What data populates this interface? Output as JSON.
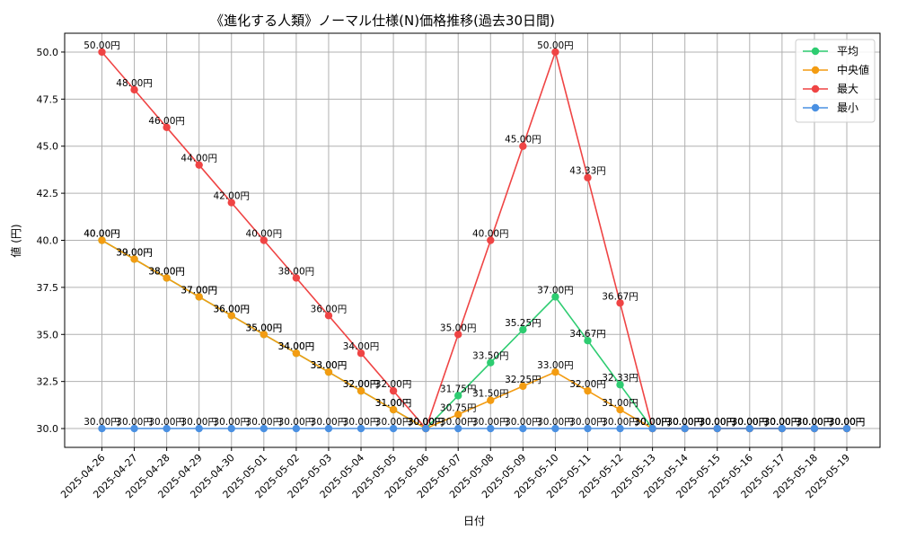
{
  "chart_data": {
    "type": "line",
    "title": "《進化する人類》ノーマル仕様(N)価格推移(過去30日間)",
    "xlabel": "日付",
    "ylabel": "値 (円)",
    "ylim": [
      29.0,
      51.0
    ],
    "yticks": [
      "30.0",
      "32.5",
      "35.0",
      "37.5",
      "40.0",
      "42.5",
      "45.0",
      "47.5",
      "50.0"
    ],
    "ytick_values": [
      30.0,
      32.5,
      35.0,
      37.5,
      40.0,
      42.5,
      45.0,
      47.5,
      50.0
    ],
    "grid": true,
    "legend_position": "top-right",
    "value_suffix": "円",
    "categories": [
      "2025-04-26",
      "2025-04-27",
      "2025-04-28",
      "2025-04-29",
      "2025-04-30",
      "2025-05-01",
      "2025-05-02",
      "2025-05-03",
      "2025-05-04",
      "2025-05-05",
      "2025-05-06",
      "2025-05-07",
      "2025-05-08",
      "2025-05-09",
      "2025-05-10",
      "2025-05-11",
      "2025-05-12",
      "2025-05-13",
      "2025-05-14",
      "2025-05-15",
      "2025-05-16",
      "2025-05-17",
      "2025-05-18",
      "2025-05-19"
    ],
    "series": [
      {
        "name": "平均",
        "color": "#2ecc71",
        "values": [
          40.0,
          39.0,
          38.0,
          37.0,
          36.0,
          35.0,
          34.0,
          33.0,
          32.0,
          31.0,
          30.0,
          31.75,
          33.5,
          35.25,
          37.0,
          34.67,
          32.33,
          30.0,
          30.0,
          30.0,
          30.0,
          30.0,
          30.0,
          30.0
        ]
      },
      {
        "name": "中央値",
        "color": "#f39c12",
        "values": [
          40.0,
          39.0,
          38.0,
          37.0,
          36.0,
          35.0,
          34.0,
          33.0,
          32.0,
          31.0,
          30.0,
          30.75,
          31.5,
          32.25,
          33.0,
          32.0,
          31.0,
          30.0,
          30.0,
          30.0,
          30.0,
          30.0,
          30.0,
          30.0
        ]
      },
      {
        "name": "最大",
        "color": "#ef4444",
        "values": [
          50.0,
          48.0,
          46.0,
          44.0,
          42.0,
          40.0,
          38.0,
          36.0,
          34.0,
          32.0,
          30.0,
          35.0,
          40.0,
          45.0,
          50.0,
          43.33,
          36.67,
          30.0,
          30.0,
          30.0,
          30.0,
          30.0,
          30.0,
          30.0
        ]
      },
      {
        "name": "最小",
        "color": "#4a90e2",
        "values": [
          30.0,
          30.0,
          30.0,
          30.0,
          30.0,
          30.0,
          30.0,
          30.0,
          30.0,
          30.0,
          30.0,
          30.0,
          30.0,
          30.0,
          30.0,
          30.0,
          30.0,
          30.0,
          30.0,
          30.0,
          30.0,
          30.0,
          30.0,
          30.0
        ]
      }
    ]
  }
}
